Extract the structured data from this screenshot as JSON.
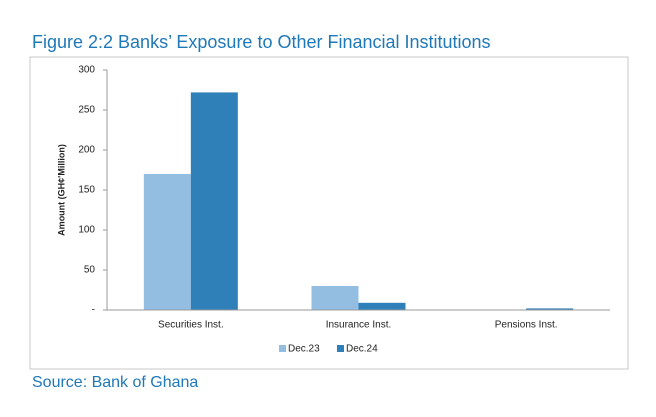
{
  "chart_data": {
    "type": "bar",
    "title": "Figure 2:2 Banks’ Exposure to Other Financial Institutions",
    "y_label": "Amount (GH¢'Million)",
    "source": "Source: Bank of Ghana",
    "categories": [
      "Securities Inst.",
      "Insurance Inst.",
      "Pensions Inst."
    ],
    "series": [
      {
        "name": "Dec.23",
        "color": "#93bde1",
        "values": [
          170,
          30,
          0.5
        ]
      },
      {
        "name": "Dec.24",
        "color": "#2f80b9",
        "values": [
          272,
          9,
          2
        ]
      }
    ],
    "ylim": [
      0,
      300
    ],
    "yticks": [
      {
        "value": 0,
        "label": "-"
      },
      50,
      100,
      150,
      200,
      250,
      300
    ],
    "grid": false
  }
}
